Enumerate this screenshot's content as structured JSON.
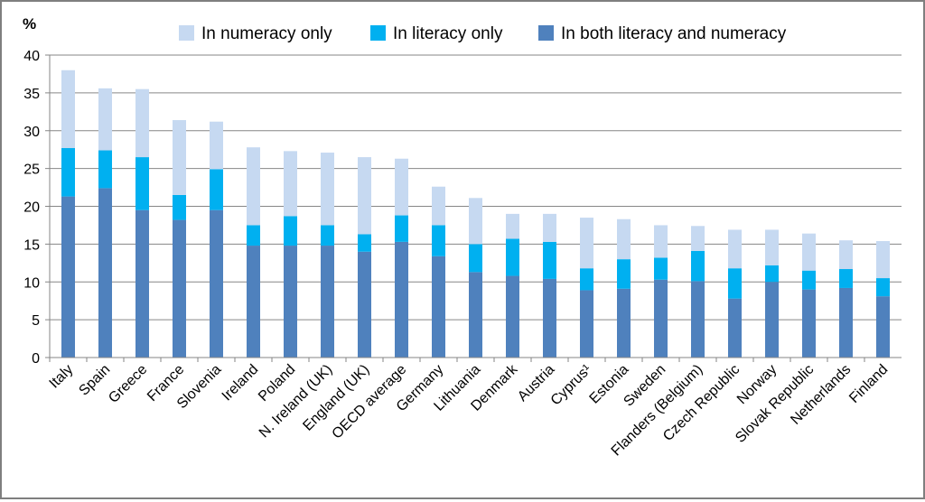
{
  "chart_data": {
    "type": "bar",
    "stacked": true,
    "y_unit_label": "%",
    "title": "",
    "xlabel": "",
    "ylabel": "%",
    "ylim": [
      0,
      40
    ],
    "y_ticks": [
      0,
      5,
      10,
      15,
      20,
      25,
      30,
      35,
      40
    ],
    "grid": true,
    "legend_position": "top",
    "categories": [
      "Italy",
      "Spain",
      "Greece",
      "France",
      "Slovenia",
      "Ireland",
      "Poland",
      "N. Ireland (UK)",
      "England (UK)",
      "OECD average",
      "Germany",
      "Lithuania",
      "Denmark",
      "Austria",
      "Cyprus¹",
      "Estonia",
      "Sweden",
      "Flanders (Belgium)",
      "Czech Republic",
      "Norway",
      "Slovak Republic",
      "Netherlands",
      "Finland"
    ],
    "legend_order": [
      "In numeracy only",
      "In literacy only",
      "In both literacy and numeracy"
    ],
    "series": [
      {
        "name": "In both literacy and numeracy",
        "color": "#4f81bd",
        "values": [
          21.3,
          22.4,
          19.5,
          18.2,
          19.5,
          14.8,
          14.8,
          14.8,
          14.0,
          15.3,
          13.4,
          11.3,
          10.8,
          10.4,
          8.9,
          9.1,
          10.3,
          10.1,
          7.8,
          10.0,
          9.0,
          9.2,
          8.1
        ]
      },
      {
        "name": "In literacy only",
        "color": "#00b0f0",
        "values": [
          6.4,
          5.0,
          7.0,
          3.3,
          5.4,
          2.7,
          3.9,
          2.7,
          2.3,
          3.5,
          4.1,
          3.7,
          4.9,
          4.9,
          2.9,
          3.9,
          2.9,
          4.0,
          4.0,
          2.2,
          2.5,
          2.5,
          2.4
        ]
      },
      {
        "name": "In numeracy only",
        "color": "#c6d9f1",
        "values": [
          10.3,
          8.2,
          9.0,
          9.9,
          6.3,
          10.3,
          8.6,
          9.6,
          10.2,
          7.5,
          5.1,
          6.1,
          3.3,
          3.7,
          6.7,
          5.3,
          4.3,
          3.3,
          5.1,
          4.7,
          4.9,
          3.8,
          4.9
        ]
      }
    ]
  }
}
